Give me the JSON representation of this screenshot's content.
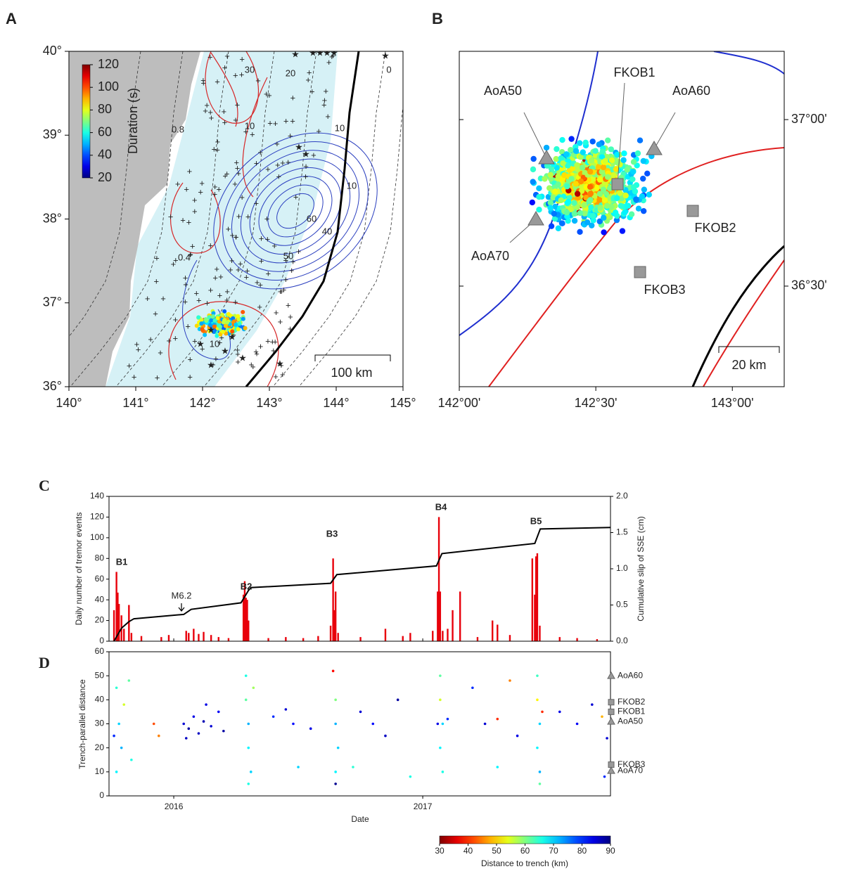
{
  "chart_data": [
    {
      "type": "map",
      "panel_label": "A",
      "xlim": [
        140,
        145
      ],
      "xticks": [
        {
          "value": 140,
          "label": "140°"
        },
        {
          "value": 141,
          "label": "141°"
        },
        {
          "value": 142,
          "label": "142°"
        },
        {
          "value": 143,
          "label": "143°"
        },
        {
          "value": 144,
          "label": "144°"
        },
        {
          "value": 145,
          "label": "145°"
        }
      ],
      "ylim": [
        36,
        40
      ],
      "yticks": [
        {
          "value": 36,
          "label": "36°"
        },
        {
          "value": 37,
          "label": "37°"
        },
        {
          "value": 38,
          "label": "38°"
        },
        {
          "value": 39,
          "label": "39°"
        },
        {
          "value": 40,
          "label": "40°"
        }
      ],
      "colorbar": {
        "title": "Duration (s)",
        "lim": [
          20,
          120
        ],
        "ticks": [
          20,
          40,
          60,
          80,
          100,
          120
        ]
      },
      "contour_labels": [
        "0.8",
        "0.4",
        "10",
        "20",
        "30",
        "60",
        "40",
        "50",
        "10",
        "10",
        "10",
        "0"
      ],
      "scale_bar": "100 km"
    },
    {
      "type": "map",
      "panel_label": "B",
      "xlim": [
        142,
        143.19
      ],
      "xticks": [
        {
          "value": 142,
          "label": "142°00'"
        },
        {
          "value": 142.5,
          "label": "142°30'"
        },
        {
          "value": 143,
          "label": "143°00'"
        }
      ],
      "ylim": [
        36.198,
        37.205
      ],
      "yticks": [
        {
          "value": 36.5,
          "label": "36°30'"
        },
        {
          "value": 37,
          "label": "37°00'"
        }
      ],
      "stations": [
        {
          "name": "AoA50",
          "marker": "triangle"
        },
        {
          "name": "FKOB1",
          "marker": "square"
        },
        {
          "name": "AoA60",
          "marker": "triangle"
        },
        {
          "name": "AoA70",
          "marker": "triangle"
        },
        {
          "name": "FKOB2",
          "marker": "square"
        },
        {
          "name": "FKOB3",
          "marker": "square"
        }
      ],
      "scale_bar": "20 km"
    },
    {
      "type": "bar_line",
      "panel_label": "C",
      "ylabel": "Daily number of tremor events",
      "y2label": "Cumulative slip of SSE (cm)",
      "xlim": [
        2015.74,
        2017.754
      ],
      "xticks": [
        2016,
        2017
      ],
      "ylim": [
        0,
        140
      ],
      "yticks": [
        0,
        20,
        40,
        60,
        80,
        100,
        120,
        140
      ],
      "y2lim": [
        0,
        2.0
      ],
      "y2ticks": [
        {
          "value": 0,
          "label": "0.0"
        },
        {
          "value": 0.5,
          "label": "0.5"
        },
        {
          "value": 1,
          "label": "1.0"
        },
        {
          "value": 1.5,
          "label": "1.5"
        },
        {
          "value": 2,
          "label": "2.0"
        }
      ],
      "annotations": [
        "B1",
        "B2",
        "B3",
        "B4",
        "B5",
        "M6.2"
      ],
      "series": [
        {
          "type": "bar",
          "color": "#e8000b",
          "x": [
            2015.76,
            2015.77,
            2015.775,
            2015.78,
            2015.79,
            2015.8,
            2015.82,
            2015.83,
            2015.87,
            2015.95,
            2015.98,
            2016.05,
            2016.06,
            2016.08,
            2016.1,
            2016.12,
            2016.15,
            2016.18,
            2016.22,
            2016.28,
            2016.285,
            2016.29,
            2016.295,
            2016.3,
            2016.38,
            2016.45,
            2016.52,
            2016.58,
            2016.63,
            2016.64,
            2016.645,
            2016.65,
            2016.66,
            2016.75,
            2016.85,
            2016.92,
            2016.95,
            2017.04,
            2017.06,
            2017.065,
            2017.07,
            2017.08,
            2017.1,
            2017.12,
            2017.15,
            2017.22,
            2017.28,
            2017.3,
            2017.35,
            2017.44,
            2017.45,
            2017.455,
            2017.46,
            2017.47,
            2017.55,
            2017.62,
            2017.7
          ],
          "values": [
            30,
            67,
            47,
            36,
            25,
            12,
            35,
            8,
            5,
            4,
            6,
            10,
            8,
            12,
            7,
            9,
            6,
            4,
            3,
            45,
            58,
            42,
            40,
            20,
            3,
            4,
            3,
            5,
            15,
            80,
            30,
            48,
            8,
            4,
            12,
            5,
            8,
            10,
            48,
            120,
            48,
            10,
            12,
            30,
            48,
            4,
            20,
            16,
            6,
            80,
            45,
            82,
            85,
            15,
            4,
            3,
            2
          ]
        },
        {
          "type": "line",
          "axis": "y2",
          "color": "#000000",
          "x": [
            2015.76,
            2015.79,
            2015.82,
            2015.84,
            2016.04,
            2016.07,
            2016.27,
            2016.3,
            2016.31,
            2016.63,
            2016.655,
            2017.055,
            2017.077,
            2017.45,
            2017.472,
            2017.754
          ],
          "values": [
            0,
            0.18,
            0.27,
            0.31,
            0.37,
            0.44,
            0.53,
            0.7,
            0.74,
            0.8,
            0.92,
            1.04,
            1.21,
            1.35,
            1.55,
            1.57
          ]
        }
      ]
    },
    {
      "type": "scatter",
      "panel_label": "D",
      "xlabel": "Date",
      "ylabel": "Trench-parallel distance",
      "xlim": [
        2015.74,
        2017.754
      ],
      "xticks": [
        2016,
        2017
      ],
      "ylim": [
        0,
        60
      ],
      "yticks": [
        0,
        10,
        20,
        30,
        40,
        50,
        60
      ],
      "x": [
        2015.77,
        2015.78,
        2015.79,
        2015.77,
        2015.8,
        2015.82,
        2015.83,
        2015.76,
        2016.04,
        2016.06,
        2016.08,
        2016.1,
        2016.12,
        2016.15,
        2016.18,
        2016.2,
        2016.05,
        2016.13,
        2015.92,
        2015.94,
        2016.29,
        2016.29,
        2016.3,
        2016.3,
        2016.31,
        2016.32,
        2016.3,
        2016.4,
        2016.48,
        2016.55,
        2016.45,
        2016.5,
        2016.64,
        2016.65,
        2016.65,
        2016.66,
        2016.65,
        2016.65,
        2016.75,
        2016.8,
        2016.85,
        2016.9,
        2016.72,
        2016.95,
        2017.07,
        2017.07,
        2017.08,
        2017.07,
        2017.08,
        2017.06,
        2017.1,
        2017.2,
        2017.25,
        2017.3,
        2017.3,
        2017.35,
        2017.38,
        2017.46,
        2017.46,
        2017.47,
        2017.46,
        2017.47,
        2017.47,
        2017.48,
        2017.55,
        2017.62,
        2017.68,
        2017.72,
        2017.74,
        2017.73
      ],
      "y": [
        45,
        30,
        20,
        10,
        38,
        48,
        15,
        25,
        30,
        28,
        33,
        26,
        31,
        29,
        35,
        27,
        24,
        38,
        30,
        25,
        50,
        40,
        30,
        20,
        10,
        45,
        5,
        33,
        30,
        28,
        36,
        12,
        52,
        40,
        30,
        20,
        10,
        5,
        35,
        30,
        25,
        40,
        12,
        8,
        50,
        40,
        30,
        20,
        10,
        30,
        32,
        45,
        30,
        32,
        12,
        48,
        25,
        50,
        40,
        30,
        20,
        10,
        5,
        35,
        35,
        30,
        38,
        33,
        24,
        8
      ],
      "c": [
        65,
        70,
        72,
        68,
        55,
        62,
        66,
        80,
        85,
        88,
        84,
        86,
        87,
        85,
        83,
        88,
        86,
        84,
        42,
        45,
        66,
        62,
        72,
        68,
        70,
        58,
        66,
        80,
        82,
        84,
        85,
        70,
        38,
        60,
        72,
        70,
        68,
        89,
        85,
        82,
        86,
        88,
        65,
        66,
        62,
        55,
        70,
        68,
        66,
        84,
        80,
        80,
        85,
        40,
        68,
        45,
        84,
        64,
        52,
        70,
        68,
        72,
        62,
        40,
        84,
        83,
        85,
        48,
        85,
        80
      ],
      "colorbar": {
        "title": "Distance to trench (km)",
        "lim": [
          30,
          90
        ],
        "ticks": [
          30,
          40,
          50,
          60,
          70,
          80,
          90
        ]
      },
      "stations": [
        {
          "name": "AoA60",
          "value": 50,
          "marker": "triangle"
        },
        {
          "name": "FKOB2",
          "value": 39,
          "marker": "square"
        },
        {
          "name": "FKOB1",
          "value": 35,
          "marker": "square"
        },
        {
          "name": "AoA50",
          "value": 31,
          "marker": "triangle"
        },
        {
          "name": "FKOB3",
          "value": 13,
          "marker": "square"
        },
        {
          "name": "AoA70",
          "value": 10.5,
          "marker": "triangle"
        }
      ]
    }
  ]
}
